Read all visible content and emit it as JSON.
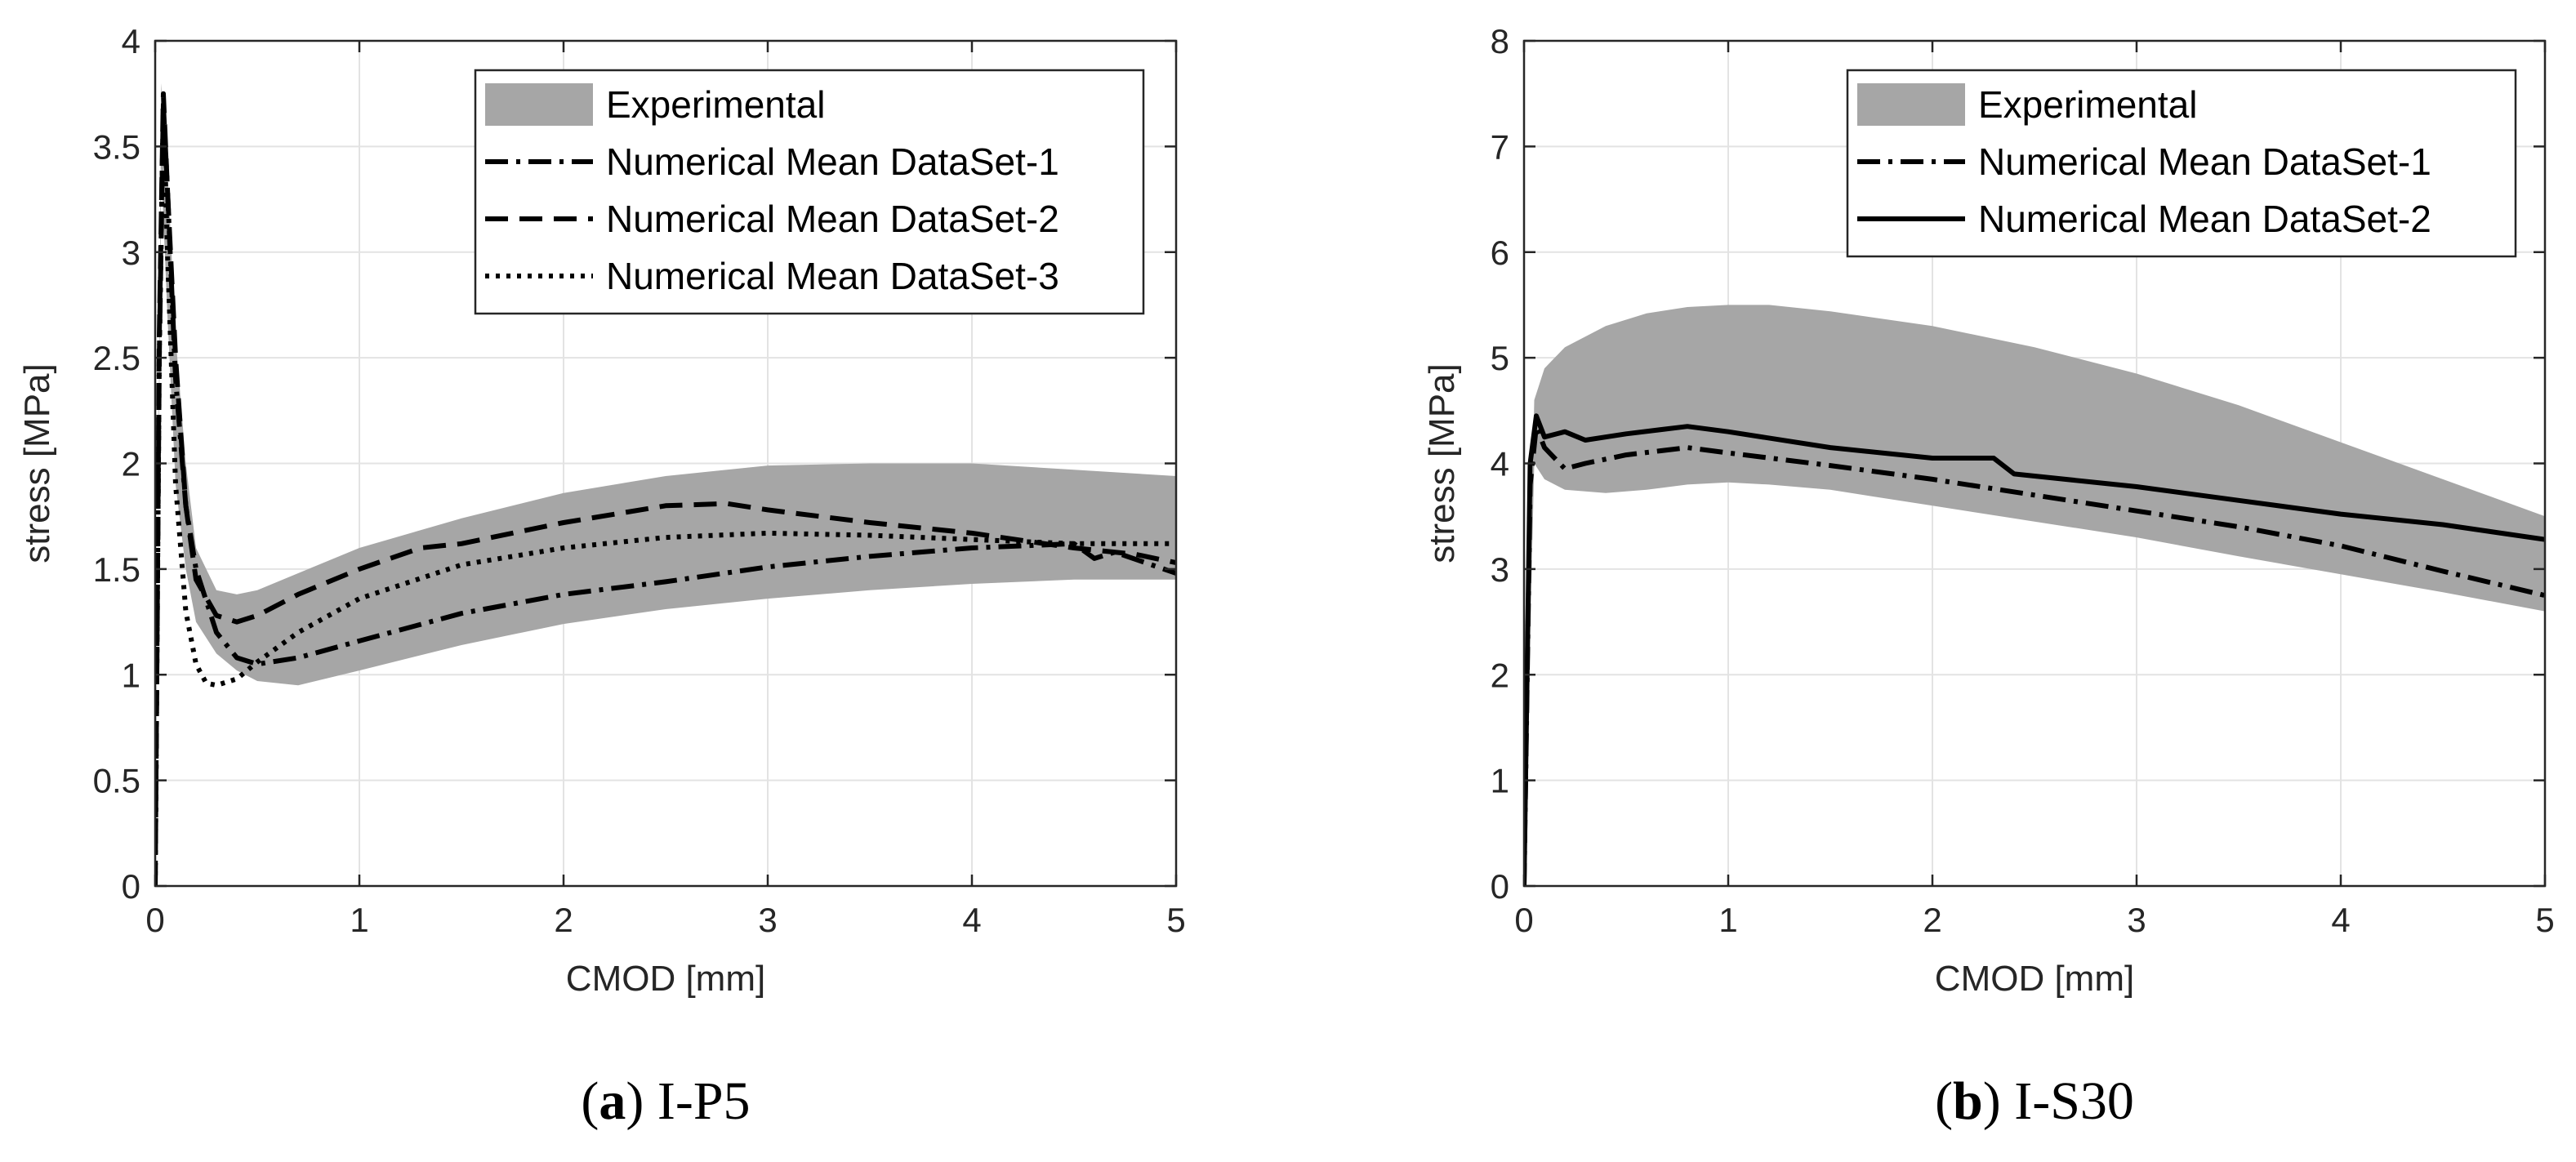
{
  "chart_data": [
    {
      "type": "line",
      "caption_letter": "a",
      "caption_text": "I-P5",
      "xlabel": "CMOD [mm]",
      "ylabel": "stress [MPa]",
      "xlim": [
        0,
        5
      ],
      "ylim": [
        0,
        4
      ],
      "xticks": [
        0,
        1,
        2,
        3,
        4,
        5
      ],
      "yticks": [
        0,
        0.5,
        1,
        1.5,
        2,
        2.5,
        3,
        3.5,
        4
      ],
      "ytick_labels": [
        "0",
        "0.5",
        "1",
        "1.5",
        "2",
        "2.5",
        "3",
        "3.5",
        "4"
      ],
      "grid": true,
      "legend_position": "top-right",
      "band": {
        "name": "Experimental",
        "color": "#a6a6a6",
        "x": [
          0,
          0.03,
          0.06,
          0.1,
          0.15,
          0.2,
          0.3,
          0.4,
          0.5,
          0.7,
          1,
          1.5,
          2,
          2.5,
          3,
          3.5,
          4,
          4.5,
          5
        ],
        "upper": [
          0,
          3.8,
          3.4,
          2.6,
          2.0,
          1.6,
          1.4,
          1.38,
          1.4,
          1.48,
          1.6,
          1.74,
          1.86,
          1.94,
          1.99,
          2.0,
          2.0,
          1.97,
          1.94
        ],
        "lower": [
          0,
          3.4,
          2.7,
          1.9,
          1.5,
          1.25,
          1.1,
          1.02,
          0.97,
          0.95,
          1.02,
          1.14,
          1.24,
          1.31,
          1.36,
          1.4,
          1.43,
          1.45,
          1.45
        ]
      },
      "series": [
        {
          "name": "Numerical Mean DataSet-1",
          "dash": "dashdot",
          "x": [
            0,
            0.02,
            0.04,
            0.06,
            0.1,
            0.15,
            0.2,
            0.3,
            0.4,
            0.5,
            0.7,
            1,
            1.5,
            2,
            2.5,
            3,
            3.5,
            4,
            4.5,
            4.6,
            4.7,
            5
          ],
          "y": [
            0,
            2.5,
            3.7,
            3.3,
            2.4,
            1.8,
            1.5,
            1.2,
            1.08,
            1.05,
            1.08,
            1.16,
            1.29,
            1.38,
            1.44,
            1.51,
            1.56,
            1.6,
            1.62,
            1.55,
            1.58,
            1.48
          ]
        },
        {
          "name": "Numerical Mean DataSet-2",
          "dash": "dashed",
          "x": [
            0,
            0.02,
            0.04,
            0.06,
            0.1,
            0.15,
            0.2,
            0.3,
            0.4,
            0.5,
            0.7,
            1,
            1.3,
            1.5,
            2,
            2.5,
            2.8,
            3,
            3.5,
            4,
            4.5,
            4.8,
            5
          ],
          "y": [
            0,
            2.6,
            3.75,
            3.3,
            2.5,
            1.8,
            1.45,
            1.28,
            1.25,
            1.28,
            1.38,
            1.5,
            1.6,
            1.62,
            1.72,
            1.8,
            1.81,
            1.78,
            1.72,
            1.67,
            1.6,
            1.57,
            1.53
          ]
        },
        {
          "name": "Numerical Mean DataSet-3",
          "dash": "dotted",
          "x": [
            0,
            0.02,
            0.04,
            0.06,
            0.1,
            0.15,
            0.2,
            0.25,
            0.3,
            0.4,
            0.5,
            0.7,
            1,
            1.5,
            2,
            2.5,
            3,
            3.5,
            4,
            4.5,
            5
          ],
          "y": [
            0,
            2.5,
            3.7,
            3.0,
            1.9,
            1.3,
            1.05,
            0.96,
            0.95,
            0.98,
            1.06,
            1.2,
            1.36,
            1.52,
            1.6,
            1.65,
            1.67,
            1.66,
            1.64,
            1.62,
            1.62
          ]
        }
      ]
    },
    {
      "type": "line",
      "caption_letter": "b",
      "caption_text": "I-S30",
      "xlabel": "CMOD [mm]",
      "ylabel": "stress [MPa]",
      "xlim": [
        0,
        5
      ],
      "ylim": [
        0,
        8
      ],
      "xticks": [
        0,
        1,
        2,
        3,
        4,
        5
      ],
      "yticks": [
        0,
        1,
        2,
        3,
        4,
        5,
        6,
        7,
        8
      ],
      "ytick_labels": [
        "0",
        "1",
        "2",
        "3",
        "4",
        "5",
        "6",
        "7",
        "8"
      ],
      "grid": true,
      "legend_position": "top-right",
      "band": {
        "name": "Experimental",
        "color": "#a6a6a6",
        "x": [
          0,
          0.05,
          0.1,
          0.2,
          0.4,
          0.6,
          0.8,
          1,
          1.2,
          1.5,
          2,
          2.5,
          3,
          3.5,
          4,
          4.5,
          5
        ],
        "upper": [
          0,
          4.6,
          4.9,
          5.1,
          5.3,
          5.42,
          5.48,
          5.5,
          5.5,
          5.44,
          5.3,
          5.1,
          4.85,
          4.55,
          4.2,
          3.85,
          3.5
        ],
        "lower": [
          0,
          4.0,
          3.85,
          3.75,
          3.72,
          3.75,
          3.8,
          3.82,
          3.8,
          3.75,
          3.6,
          3.45,
          3.3,
          3.12,
          2.95,
          2.78,
          2.6
        ]
      },
      "series": [
        {
          "name": "Numerical Mean DataSet-1",
          "dash": "dashdot",
          "x": [
            0,
            0.03,
            0.06,
            0.1,
            0.2,
            0.3,
            0.5,
            0.8,
            1,
            1.5,
            2,
            2.5,
            3,
            3.5,
            4,
            4.5,
            5
          ],
          "y": [
            0,
            3.8,
            4.35,
            4.15,
            3.95,
            4.0,
            4.08,
            4.15,
            4.1,
            3.98,
            3.85,
            3.7,
            3.55,
            3.4,
            3.22,
            2.98,
            2.75
          ]
        },
        {
          "name": "Numerical Mean DataSet-2",
          "dash": "solid",
          "x": [
            0,
            0.03,
            0.06,
            0.1,
            0.2,
            0.3,
            0.5,
            0.8,
            1,
            1.5,
            2,
            2.3,
            2.4,
            3,
            3.5,
            4,
            4.5,
            5
          ],
          "y": [
            0,
            4.0,
            4.45,
            4.25,
            4.3,
            4.22,
            4.28,
            4.35,
            4.3,
            4.15,
            4.05,
            4.05,
            3.9,
            3.78,
            3.65,
            3.52,
            3.42,
            3.28
          ]
        }
      ]
    }
  ]
}
